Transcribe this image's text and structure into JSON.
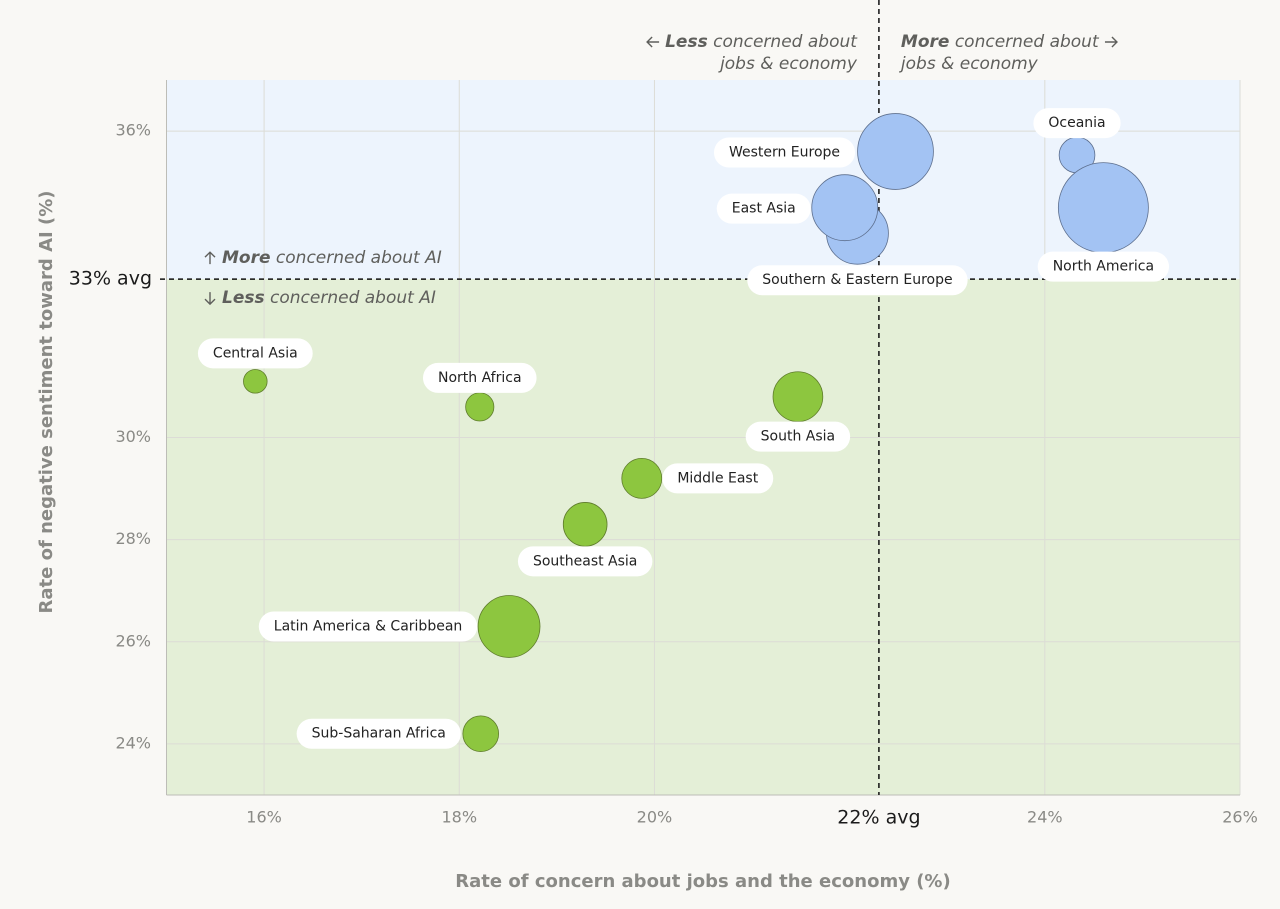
{
  "chart_data": {
    "type": "bubble",
    "x_label": "Rate of concern about jobs and the economy (%)",
    "y_label": "Rate of negative sentiment toward AI (%)",
    "xlim": [
      15,
      26
    ],
    "ylim": [
      23,
      37
    ],
    "xticks": [
      {
        "value": 16,
        "label": "16%"
      },
      {
        "value": 18,
        "label": "18%"
      },
      {
        "value": 20,
        "label": "20%"
      },
      {
        "value": 24,
        "label": "24%"
      },
      {
        "value": 26,
        "label": "26%"
      }
    ],
    "yticks": [
      {
        "value": 24,
        "label": "24%"
      },
      {
        "value": 26,
        "label": "26%"
      },
      {
        "value": 28,
        "label": "28%"
      },
      {
        "value": 30,
        "label": "30%"
      },
      {
        "value": 36,
        "label": "36%"
      }
    ],
    "x_avg": {
      "value": 22.3,
      "label": "22% avg"
    },
    "y_avg": {
      "value": 33.1,
      "label": "33% avg"
    },
    "x_annotations": [
      {
        "bold": "Less",
        "text": "concerned about",
        "line2": "jobs & economy"
      },
      {
        "bold": "More",
        "text": "concerned about",
        "line2": "jobs & economy"
      }
    ],
    "y_annotations": [
      {
        "bold": "More",
        "text": "concerned about AI"
      },
      {
        "bold": "Less",
        "text": "concerned about AI"
      }
    ],
    "grid": true,
    "categories": [
      "Western Europe",
      "Southern & Eastern Europe",
      "East Asia",
      "Oceania",
      "North America",
      "Central Asia",
      "North Africa",
      "South Asia",
      "Middle East",
      "Southeast Asia",
      "Latin America & Caribbean",
      "Sub-Saharan Africa"
    ],
    "x": [
      22.47,
      22.08,
      21.95,
      24.33,
      24.6,
      15.91,
      18.21,
      21.47,
      19.87,
      19.29,
      18.51,
      18.22
    ],
    "y": [
      35.6,
      34.0,
      34.5,
      35.53,
      34.5,
      31.1,
      30.6,
      30.8,
      29.2,
      28.3,
      26.3,
      24.2
    ],
    "sizes": [
      144,
      96,
      109,
      32,
      203,
      14,
      20,
      62,
      40,
      48,
      96,
      32
    ],
    "colors": [
      "#a3c3f3",
      "#a3c3f3",
      "#a3c3f3",
      "#a3c3f3",
      "#a3c3f3",
      "#8dc63f",
      "#8dc63f",
      "#8dc63f",
      "#8dc63f",
      "#8dc63f",
      "#8dc63f",
      "#8dc63f"
    ]
  }
}
